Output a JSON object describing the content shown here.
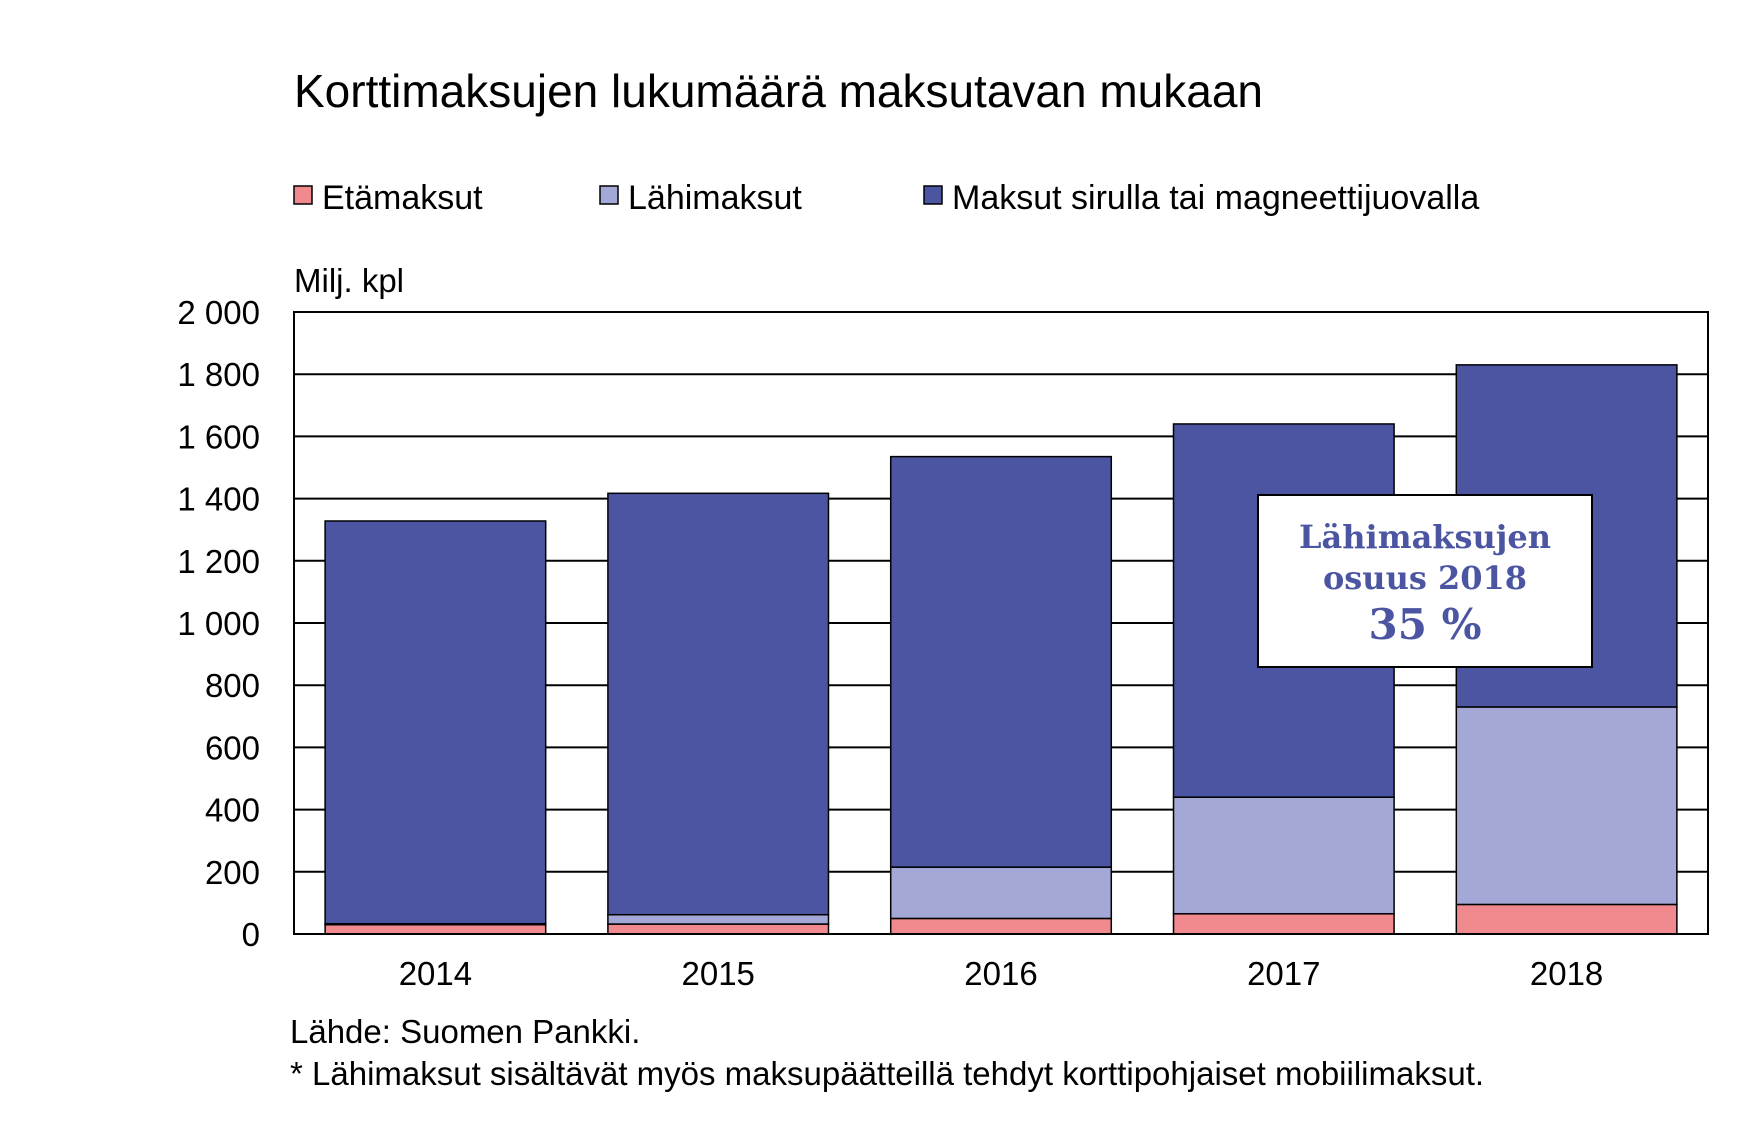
{
  "chart_data": {
    "type": "bar",
    "stacked": true,
    "title": "Korttimaksujen lukumäärä maksutavan mukaan",
    "ylabel": "Milj. kpl",
    "xlabel": "",
    "categories": [
      "2014",
      "2015",
      "2016",
      "2017",
      "2018"
    ],
    "ylim": [
      0,
      2000
    ],
    "yticks": [
      0,
      200,
      400,
      600,
      800,
      1000,
      1200,
      1400,
      1600,
      1800,
      2000
    ],
    "ytick_labels": [
      "0",
      "200",
      "400",
      "600",
      "800",
      "1 000",
      "1 200",
      "1 400",
      "1 600",
      "1 800",
      "2 000"
    ],
    "grid": true,
    "legend_position": "top",
    "series": [
      {
        "name": "Etämaksut",
        "color": "#F08A8E",
        "values": [
          30,
          32,
          50,
          65,
          95
        ]
      },
      {
        "name": "Lähimaksut",
        "color": "#A4A8D6",
        "values": [
          3,
          30,
          165,
          375,
          635
        ]
      },
      {
        "name": "Maksut sirulla tai magneettijuovalla",
        "color": "#4B55A2",
        "values": [
          1295,
          1355,
          1320,
          1200,
          1100
        ]
      }
    ],
    "annotation": {
      "line1": "Lähimaksujen",
      "line2": "osuus 2018",
      "line3": "35 %"
    },
    "source": "Lähde: Suomen Pankki.",
    "footnote": "* Lähimaksut sisältävät myös maksupäätteillä tehdyt korttipohjaiset mobiilimaksut."
  }
}
